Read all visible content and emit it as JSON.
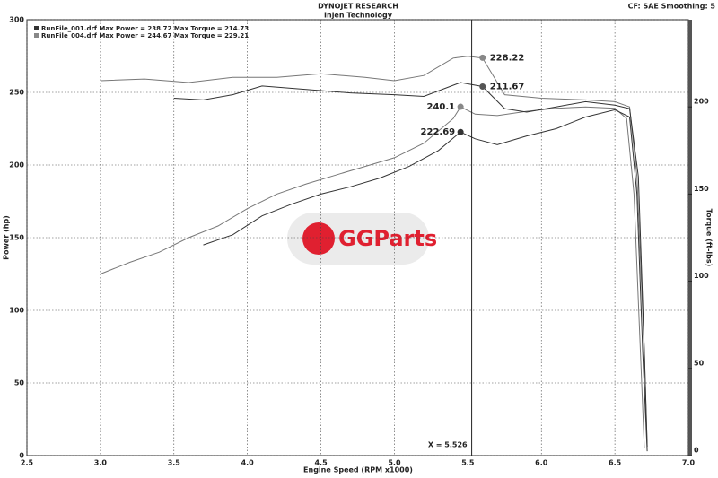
{
  "chart_data": {
    "type": "line",
    "title": "DYNOJET RESEARCH",
    "subtitle": "Injen Technology",
    "settings_text": "CF: SAE  Smoothing: 5",
    "xlabel": "Engine Speed (RPM x1000)",
    "ylabel": "Power (hp)",
    "y2label": "Torque (ft-lbs)",
    "watermark": "GGParts",
    "legend": [
      "RunFile_001.drf Max Power = 238.72   Max Torque = 214.73",
      "RunFile_004.drf Max Power = 244.67   Max Torque = 229.21"
    ],
    "legend_colors": [
      "#333333",
      "#888888"
    ],
    "xlim": [
      2.5,
      7.0
    ],
    "xticks": [
      2.5,
      {
        "value": 3,
        "label": "3.0"
      },
      3.5,
      {
        "value": 4,
        "label": "4.0"
      },
      4.5,
      {
        "value": 5,
        "label": "5.0"
      },
      5.5,
      {
        "value": 6,
        "label": "6.0"
      },
      6.5,
      {
        "value": 7,
        "label": "7.0"
      }
    ],
    "ylim": [
      0,
      300
    ],
    "yticks": [
      0,
      50,
      100,
      150,
      200,
      250,
      300
    ],
    "y2lim": [
      0,
      250
    ],
    "y2ticks": [
      0,
      50,
      100,
      150,
      200
    ],
    "grid": true,
    "series": [
      {
        "name": "RunFile_004.drf Power",
        "color": "#777777",
        "x": [
          3.0,
          3.2,
          3.4,
          3.6,
          3.8,
          4.0,
          4.2,
          4.4,
          4.6,
          4.8,
          5.0,
          5.2,
          5.4,
          5.45,
          5.55,
          5.7,
          5.9,
          6.1,
          6.3,
          6.5,
          6.58,
          6.63,
          6.67,
          6.7
        ],
        "values": [
          125,
          133,
          140,
          150,
          158,
          170,
          180,
          187,
          193,
          199,
          205,
          215,
          232,
          240,
          235,
          234,
          237,
          239,
          240,
          239,
          232,
          180,
          80,
          5
        ]
      },
      {
        "name": "RunFile_001.drf Power",
        "color": "#333333",
        "x": [
          3.7,
          3.9,
          4.1,
          4.3,
          4.5,
          4.7,
          4.9,
          5.1,
          5.3,
          5.45,
          5.55,
          5.7,
          5.9,
          6.1,
          6.3,
          6.5,
          6.6,
          6.65,
          6.69,
          6.72
        ],
        "values": [
          145,
          152,
          165,
          173,
          180,
          185,
          191,
          199,
          210,
          222.7,
          218,
          214,
          220,
          225,
          233,
          238,
          233,
          180,
          70,
          3
        ]
      },
      {
        "name": "RunFile_004.drf Torque",
        "color": "#777777",
        "axis": "y2",
        "x": [
          3.0,
          3.3,
          3.6,
          3.9,
          4.2,
          4.5,
          4.8,
          5.0,
          5.2,
          5.4,
          5.5,
          5.6,
          5.75,
          6.0,
          6.3,
          6.5,
          6.6,
          6.65,
          6.7,
          6.72
        ],
        "values": [
          215,
          216,
          214,
          217,
          217,
          219,
          217,
          215,
          218,
          228,
          229,
          228,
          207,
          205,
          204,
          203,
          200,
          160,
          60,
          5
        ]
      },
      {
        "name": "RunFile_001.drf Torque",
        "color": "#333333",
        "axis": "y2",
        "x": [
          3.5,
          3.7,
          3.9,
          4.1,
          4.4,
          4.7,
          5.0,
          5.2,
          5.45,
          5.6,
          5.75,
          5.9,
          6.1,
          6.3,
          6.5,
          6.6,
          6.66,
          6.7,
          6.72
        ],
        "values": [
          205,
          204,
          207,
          212,
          210,
          208,
          207,
          206,
          214,
          211.67,
          199,
          197,
          200,
          203,
          201,
          199,
          160,
          60,
          5
        ]
      }
    ],
    "markers": [
      {
        "x": 5.6,
        "y": 228.22,
        "axis": "y2",
        "color": "#888888"
      },
      {
        "x": 5.6,
        "y": 211.67,
        "axis": "y2",
        "color": "#555555"
      },
      {
        "x": 5.45,
        "y": 240.1,
        "color": "#888888"
      },
      {
        "x": 5.45,
        "y": 222.69,
        "color": "#333333"
      }
    ],
    "cursor": {
      "x": 5.526,
      "label": "X = 5.526"
    }
  }
}
